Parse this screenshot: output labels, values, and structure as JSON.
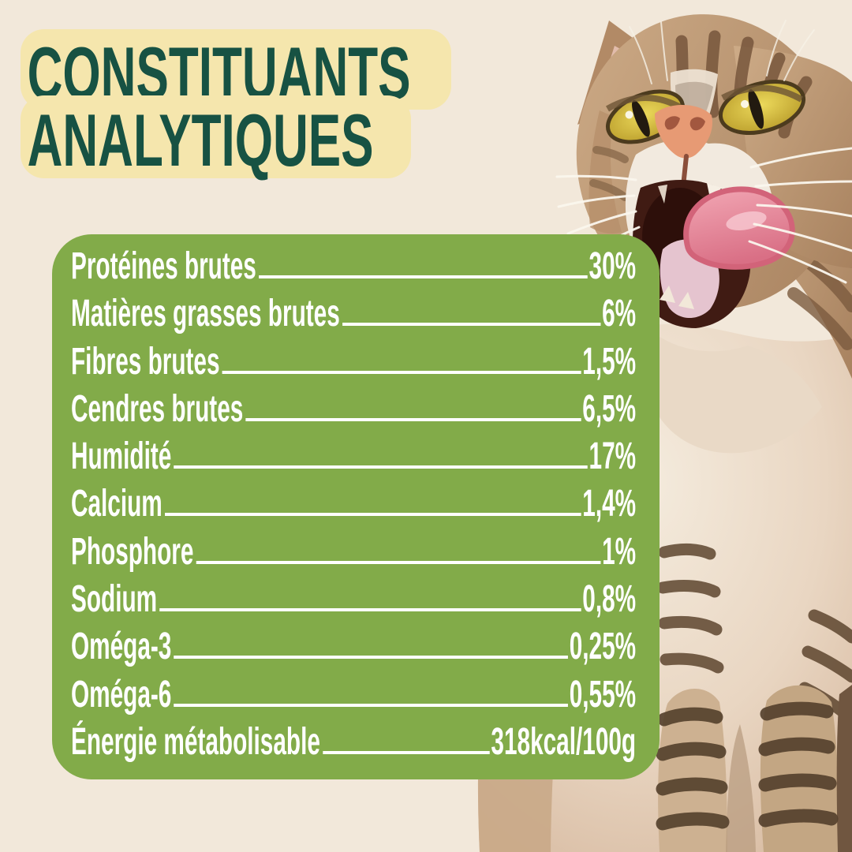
{
  "title": {
    "line1": "CONSTITUANTS",
    "line2": "ANALYTIQUES"
  },
  "panel": {
    "rows": [
      {
        "label": "Protéines brutes",
        "value": "30%"
      },
      {
        "label": "Matières grasses brutes",
        "value": "6%"
      },
      {
        "label": "Fibres brutes",
        "value": "1,5%"
      },
      {
        "label": "Cendres brutes",
        "value": "6,5%"
      },
      {
        "label": "Humidité",
        "value": "17%"
      },
      {
        "label": "Calcium",
        "value": "1,4%"
      },
      {
        "label": "Phosphore",
        "value": "1%"
      },
      {
        "label": "Sodium",
        "value": "0,8%"
      },
      {
        "label": "Oméga-3",
        "value": "0,25%"
      },
      {
        "label": "Oméga-6",
        "value": "0,55%"
      },
      {
        "label": "Énergie métabolisable",
        "value": "318kcal/100g"
      }
    ]
  },
  "photo": {
    "subject": "tabby cat, mouth wide open, pink tongue out, golden eyes"
  },
  "colors": {
    "background": "#f2e8da",
    "panel_green": "#82ab49",
    "title_highlight_yellow": "#f5e6ad",
    "title_green": "#175243",
    "row_text": "#ffffff"
  }
}
